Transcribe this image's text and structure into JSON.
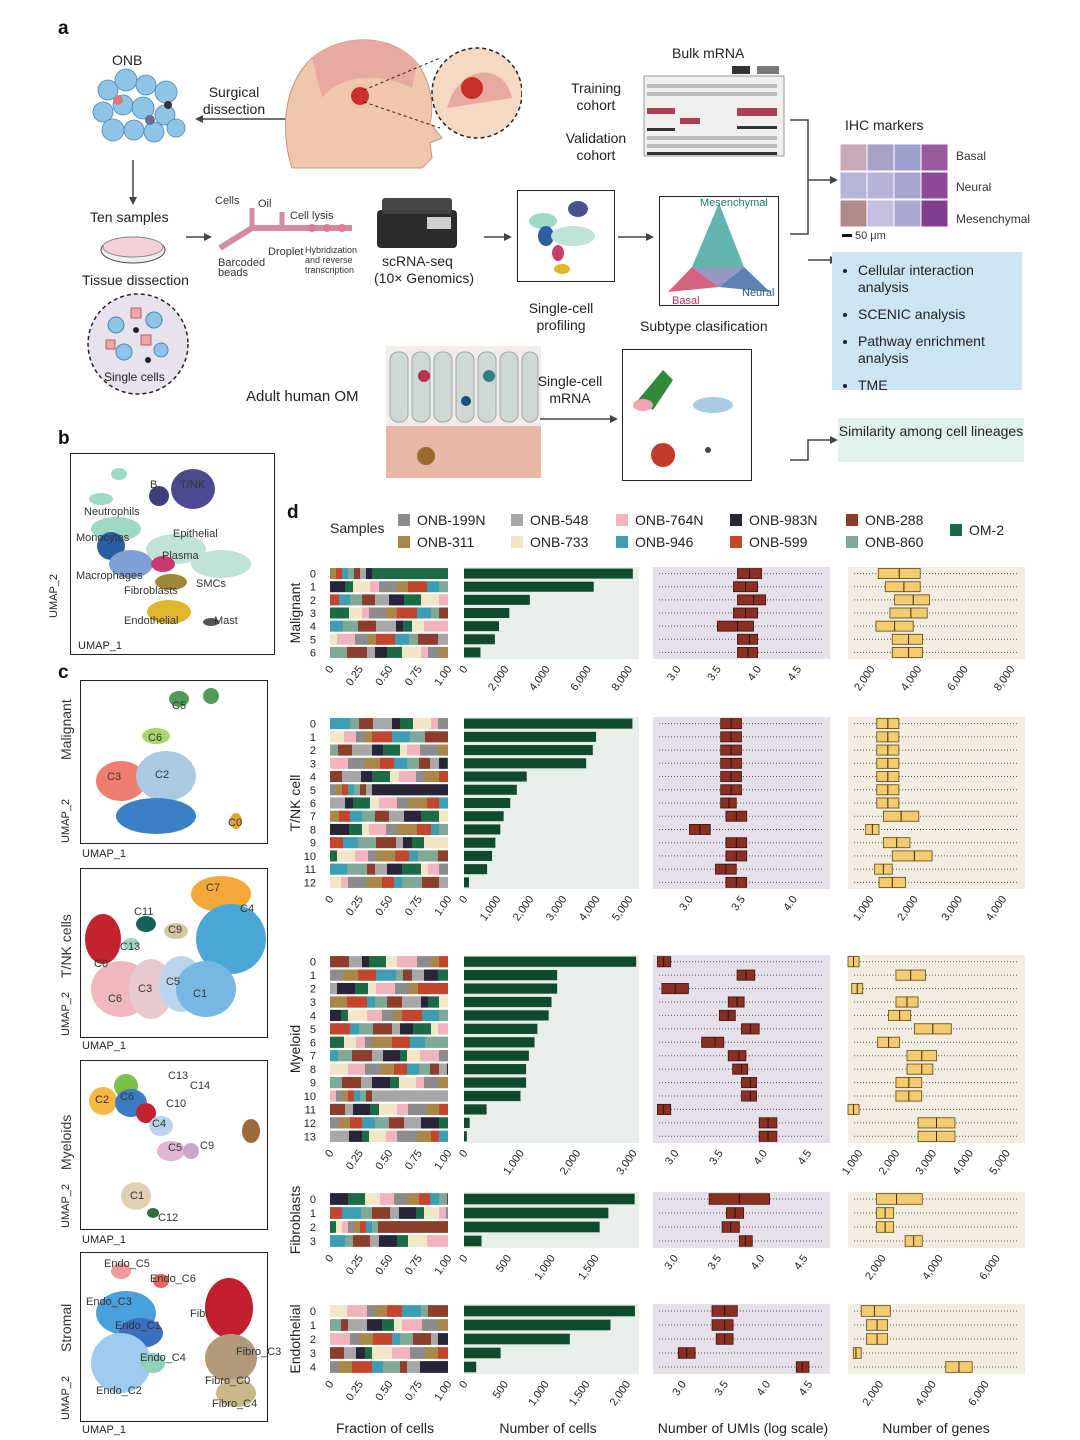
{
  "panel_a": {
    "letter": "a",
    "onb": "ONB",
    "surgical": "Surgical dissection",
    "ten_samples": "Ten samples",
    "tissue_dissection": "Tissue dissection",
    "single_cells": "Single cells",
    "cells": "Cells",
    "oil": "Oil",
    "cell_lysis": "Cell lysis",
    "barcoded_beads": "Barcoded beads",
    "droplet": "Droplet",
    "hybridization": "Hybridization and reverse transcription",
    "scrna": "scRNA-seq",
    "genomics": "(10× Genomics)",
    "single_cell_profiling": "Single-cell profiling",
    "subtype_classification": "Subtype clasification",
    "mesenchymal_top": "Mesenchymal",
    "basal_small": "Basal",
    "neural_small": "Neural",
    "bulk_mrna": "Bulk mRNA",
    "training": "Training cohort",
    "validation": "Validation cohort",
    "ihc_markers": "IHC markers",
    "ihc_basal": "Basal",
    "ihc_neural": "Neural",
    "ihc_mesenchymal": "Mesenchymal",
    "scale": "50 μm",
    "adult_om": "Adult human OM",
    "single_cell_mrna": "Single-cell mRNA",
    "analyses": [
      "Cellular interaction analysis",
      "SCENIC analysis",
      "Pathway enrichment analysis",
      "TME"
    ],
    "similarity": "Similarity among cell lineages"
  },
  "panel_b": {
    "letter": "b",
    "labels": {
      "b": "B",
      "tnk": "T/NK",
      "neutrophils": "Neutrophils",
      "monocytes": "Monocytes",
      "epithelial": "Epithelial",
      "plasma": "Plasma",
      "macrophages": "Macrophages",
      "smcs": "SMCs",
      "fibroblasts": "Fibroblasts",
      "endothelial": "Endothelial",
      "mast": "Mast"
    },
    "umap1": "UMAP_1",
    "umap2": "UMAP_2"
  },
  "panel_c": {
    "letter": "c",
    "umap1": "UMAP_1",
    "umap2": "UMAP_2",
    "malignant": {
      "title": "Malignant",
      "labels": [
        "C5",
        "C6",
        "C3",
        "C2",
        "C0"
      ]
    },
    "tnk": {
      "title": "T/NK cells",
      "labels": [
        "C7",
        "C4",
        "C11",
        "C9",
        "C13",
        "C0",
        "C5",
        "C3",
        "C6",
        "C1"
      ]
    },
    "myeloid": {
      "title": "Myeloids",
      "labels": [
        "C13",
        "C14",
        "C2",
        "C6",
        "C10",
        "C4",
        "C5",
        "C9",
        "C1",
        "C12"
      ]
    },
    "stromal": {
      "title": "Stromal",
      "labels": [
        "Endo_C5",
        "Endo_C6",
        "Endo_C3",
        "Endo_C1",
        "Endo_C4",
        "Endo_C2",
        "Fibr",
        "Fibro_C3",
        "Fibro_C0",
        "Fibro_C4"
      ]
    }
  },
  "panel_d": {
    "letter": "d",
    "samples_label": "Samples",
    "xlabels": [
      "Fraction of cells",
      "Number of cells",
      "Number of UMIs (log scale)",
      "Number of genes"
    ],
    "legend": [
      {
        "name": "ONB-199N",
        "color": "#8c8c8c"
      },
      {
        "name": "ONB-548",
        "color": "#a7a7a7"
      },
      {
        "name": "ONB-764N",
        "color": "#f1b4bd"
      },
      {
        "name": "ONB-983N",
        "color": "#2a2438"
      },
      {
        "name": "ONB-288",
        "color": "#8d3d2c"
      },
      {
        "name": "OM-2",
        "color": "#1c6b47"
      },
      {
        "name": "ONB-311",
        "color": "#a88748"
      },
      {
        "name": "ONB-733",
        "color": "#f1e6c6"
      },
      {
        "name": "ONB-946",
        "color": "#3d9db3"
      },
      {
        "name": "ONB-599",
        "color": "#c2452e"
      },
      {
        "name": "ONB-860",
        "color": "#7fa897"
      }
    ]
  },
  "chart_data": [
    {
      "type": "bar",
      "group": "Malignant",
      "title": "Number of cells",
      "categories": [
        "0",
        "1",
        "2",
        "3",
        "4",
        "5",
        "6"
      ],
      "values": [
        8200,
        6300,
        3200,
        2200,
        1700,
        1500,
        800
      ],
      "xlim": [
        0,
        8500
      ],
      "ticks": [
        "0",
        "2,000",
        "4,000",
        "6,000",
        "8,000"
      ],
      "tick_values": [
        0,
        2000,
        4000,
        6000,
        8000
      ],
      "frac_ticks": [
        "0",
        "0.25",
        "0.50",
        "0.75",
        "1.00"
      ],
      "umi_ticks": [
        "3.0",
        "3.5",
        "4.0",
        "4.5"
      ],
      "umi_tick_values": [
        3.0,
        3.5,
        4.0,
        4.5
      ],
      "umi_lim": [
        2.7,
        4.9
      ],
      "umi_box": [
        [
          3.75,
          3.9,
          4.05
        ],
        [
          3.7,
          3.85,
          4.0
        ],
        [
          3.75,
          3.95,
          4.1
        ],
        [
          3.7,
          3.85,
          4.0
        ],
        [
          3.5,
          3.75,
          3.95
        ],
        [
          3.75,
          3.9,
          4.0
        ],
        [
          3.75,
          3.88,
          4.0
        ]
      ],
      "gene_ticks": [
        "2,000",
        "4,000",
        "6,000",
        "8,000"
      ],
      "gene_tick_values": [
        2000,
        4000,
        6000,
        8000
      ],
      "gene_lim": [
        1000,
        8600
      ],
      "gene_box": [
        [
          2300,
          3200,
          4100
        ],
        [
          2600,
          3400,
          4100
        ],
        [
          3000,
          3800,
          4500
        ],
        [
          2800,
          3700,
          4400
        ],
        [
          2200,
          3000,
          3800
        ],
        [
          2900,
          3600,
          4200
        ],
        [
          2900,
          3600,
          4200
        ]
      ]
    },
    {
      "type": "bar",
      "group": "T/NK cell",
      "title": "Number of cells",
      "categories": [
        "0",
        "1",
        "2",
        "3",
        "4",
        "5",
        "6",
        "7",
        "8",
        "9",
        "10",
        "11",
        "12"
      ],
      "values": [
        5100,
        4000,
        3900,
        3700,
        1900,
        1600,
        1400,
        1200,
        1100,
        950,
        850,
        700,
        150
      ],
      "xlim": [
        0,
        5300
      ],
      "ticks": [
        "0",
        "1,000",
        "2,000",
        "3,000",
        "4,000",
        "5,000"
      ],
      "tick_values": [
        0,
        1000,
        2000,
        3000,
        4000,
        5000
      ],
      "frac_ticks": [
        "0",
        "0.25",
        "0.50",
        "0.75",
        "1.00"
      ],
      "umi_ticks": [
        "3.0",
        "3.5",
        "4.0"
      ],
      "umi_tick_values": [
        3.0,
        3.5,
        4.0
      ],
      "umi_lim": [
        2.65,
        4.35
      ],
      "umi_box": [
        [
          3.3,
          3.4,
          3.5
        ],
        [
          3.3,
          3.4,
          3.5
        ],
        [
          3.3,
          3.4,
          3.5
        ],
        [
          3.3,
          3.4,
          3.5
        ],
        [
          3.3,
          3.4,
          3.5
        ],
        [
          3.3,
          3.4,
          3.5
        ],
        [
          3.3,
          3.38,
          3.45
        ],
        [
          3.35,
          3.45,
          3.55
        ],
        [
          3.0,
          3.1,
          3.2
        ],
        [
          3.35,
          3.45,
          3.55
        ],
        [
          3.35,
          3.45,
          3.55
        ],
        [
          3.25,
          3.35,
          3.45
        ],
        [
          3.35,
          3.45,
          3.55
        ]
      ],
      "gene_box": [
        [
          1150,
          1400,
          1650
        ],
        [
          1150,
          1400,
          1650
        ],
        [
          1150,
          1400,
          1650
        ],
        [
          1150,
          1400,
          1650
        ],
        [
          1150,
          1400,
          1650
        ],
        [
          1150,
          1400,
          1650
        ],
        [
          1150,
          1400,
          1650
        ],
        [
          1300,
          1700,
          2100
        ],
        [
          900,
          1050,
          1200
        ],
        [
          1300,
          1600,
          1900
        ],
        [
          1500,
          2000,
          2400
        ],
        [
          1100,
          1300,
          1500
        ],
        [
          1200,
          1500,
          1800
        ]
      ],
      "gene_ticks": [
        "1,000",
        "2,000",
        "3,000",
        "4,000"
      ],
      "gene_tick_values": [
        1000,
        2000,
        3000,
        4000
      ],
      "gene_lim": [
        500,
        4500
      ]
    },
    {
      "type": "bar",
      "group": "Myeloid",
      "title": "Number of cells",
      "categories": [
        "0",
        "1",
        "2",
        "3",
        "4",
        "5",
        "6",
        "7",
        "8",
        "9",
        "10",
        "11",
        "12",
        "13"
      ],
      "values": [
        3050,
        1650,
        1650,
        1550,
        1500,
        1300,
        1250,
        1150,
        1100,
        1100,
        1000,
        400,
        100,
        50
      ],
      "xlim": [
        0,
        3100
      ],
      "ticks": [
        "0",
        "1,000",
        "2,000",
        "3,000"
      ],
      "tick_values": [
        0,
        1000,
        2000,
        3000
      ],
      "frac_ticks": [
        "0",
        "0.25",
        "0.50",
        "0.75",
        "1.00"
      ],
      "umi_ticks": [
        "3.0",
        "3.5",
        "4.0",
        "4.5"
      ],
      "umi_tick_values": [
        3.0,
        3.5,
        4.0,
        4.5
      ],
      "umi_lim": [
        2.75,
        4.75
      ],
      "umi_box": [
        [
          2.8,
          2.87,
          2.95
        ],
        [
          3.7,
          3.8,
          3.9
        ],
        [
          2.85,
          3.0,
          3.15
        ],
        [
          3.6,
          3.7,
          3.78
        ],
        [
          3.5,
          3.6,
          3.68
        ],
        [
          3.75,
          3.85,
          3.95
        ],
        [
          3.3,
          3.45,
          3.55
        ],
        [
          3.6,
          3.72,
          3.8
        ],
        [
          3.65,
          3.75,
          3.82
        ],
        [
          3.75,
          3.85,
          3.92
        ],
        [
          3.75,
          3.85,
          3.92
        ],
        [
          2.8,
          2.87,
          2.95
        ],
        [
          3.95,
          4.05,
          4.15
        ],
        [
          3.95,
          4.05,
          4.15
        ]
      ],
      "gene_ticks": [
        "1,000",
        "2,000",
        "3,000",
        "4,000",
        "5,000"
      ],
      "gene_tick_values": [
        1000,
        2000,
        3000,
        4000,
        5000
      ],
      "gene_lim": [
        700,
        5500
      ],
      "gene_box": [
        [
          700,
          850,
          1000
        ],
        [
          2000,
          2400,
          2800
        ],
        [
          800,
          950,
          1100
        ],
        [
          2000,
          2300,
          2600
        ],
        [
          1800,
          2100,
          2400
        ],
        [
          2500,
          3000,
          3500
        ],
        [
          1500,
          1800,
          2100
        ],
        [
          2300,
          2700,
          3100
        ],
        [
          2300,
          2700,
          3000
        ],
        [
          2000,
          2350,
          2700
        ],
        [
          2000,
          2350,
          2700
        ],
        [
          700,
          850,
          1000
        ],
        [
          2600,
          3100,
          3600
        ],
        [
          2600,
          3100,
          3600
        ]
      ]
    },
    {
      "type": "bar",
      "group": "Fibroblasts",
      "title": "Number of cells",
      "categories": [
        "0",
        "1",
        "2",
        "3"
      ],
      "values": [
        1950,
        1650,
        1550,
        200
      ],
      "xlim": [
        0,
        2000
      ],
      "ticks": [
        "0",
        "500",
        "1,000",
        "1,500"
      ],
      "tick_values": [
        0,
        500,
        1000,
        1500
      ],
      "frac_ticks": [
        "0",
        "0.25",
        "0.50",
        "0.75",
        "1.00"
      ],
      "umi_ticks": [
        "3.0",
        "3.5",
        "4.0",
        "4.5"
      ],
      "umi_tick_values": [
        3.0,
        3.5,
        4.0,
        4.5
      ],
      "umi_lim": [
        2.75,
        4.8
      ],
      "umi_box": [
        [
          3.4,
          3.75,
          4.1
        ],
        [
          3.6,
          3.7,
          3.8
        ],
        [
          3.55,
          3.65,
          3.75
        ],
        [
          3.75,
          3.82,
          3.9
        ]
      ],
      "gene_ticks": [
        "2,000",
        "4,000",
        "6,000"
      ],
      "gene_tick_values": [
        2000,
        4000,
        6000
      ],
      "gene_lim": [
        800,
        7000
      ],
      "gene_box": [
        [
          1800,
          2500,
          3400
        ],
        [
          1800,
          2100,
          2400
        ],
        [
          1800,
          2100,
          2400
        ],
        [
          2800,
          3100,
          3400
        ]
      ]
    },
    {
      "type": "bar",
      "group": "Endothelial",
      "title": "Number of cells",
      "categories": [
        "0",
        "1",
        "2",
        "3",
        "4"
      ],
      "values": [
        2100,
        1800,
        1300,
        450,
        150
      ],
      "xlim": [
        0,
        2150
      ],
      "ticks": [
        "0",
        "500",
        "1,000",
        "1,500",
        "2,000"
      ],
      "tick_values": [
        0,
        500,
        1000,
        1500,
        2000
      ],
      "frac_ticks": [
        "0",
        "0.25",
        "0.50",
        "0.75",
        "1.00"
      ],
      "umi_ticks": [
        "3.0",
        "3.5",
        "4.0",
        "4.5"
      ],
      "umi_tick_values": [
        3.0,
        3.5,
        4.0,
        4.5
      ],
      "umi_lim": [
        2.65,
        4.75
      ],
      "umi_box": [
        [
          3.35,
          3.5,
          3.65
        ],
        [
          3.35,
          3.5,
          3.6
        ],
        [
          3.4,
          3.5,
          3.6
        ],
        [
          2.95,
          3.05,
          3.15
        ],
        [
          4.35,
          4.42,
          4.5
        ]
      ],
      "gene_ticks": [
        "2,000",
        "4,000",
        "6,000"
      ],
      "gene_tick_values": [
        2000,
        4000,
        6000
      ],
      "gene_lim": [
        800,
        7500
      ],
      "gene_box": [
        [
          1300,
          1800,
          2400
        ],
        [
          1500,
          1900,
          2300
        ],
        [
          1500,
          1900,
          2300
        ],
        [
          1000,
          1100,
          1300
        ],
        [
          4500,
          5000,
          5500
        ]
      ]
    }
  ]
}
